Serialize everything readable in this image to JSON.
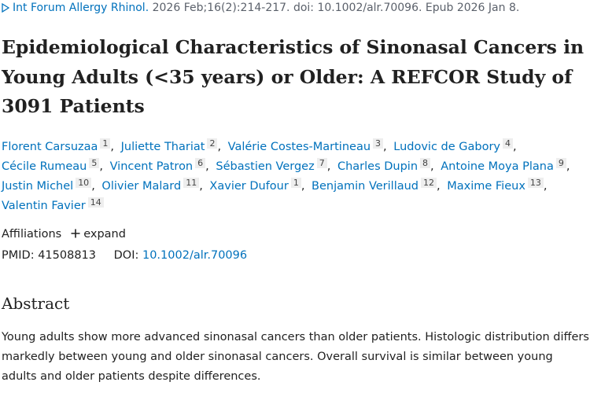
{
  "citation": {
    "journal": "Int Forum Allergy Rhinol.",
    "details": "2026 Feb;16(2):214-217. doi: 10.1002/alr.70096. Epub 2026 Jan 8."
  },
  "title": "Epidemiological Characteristics of Sinonasal Cancers in Young Adults (<35 years) or Older: A REFCOR Study of 3091 Patients",
  "authors": [
    {
      "name": "Florent Carsuzaa",
      "affiliation": 1
    },
    {
      "name": "Juliette Thariat",
      "affiliation": 2
    },
    {
      "name": "Valérie Costes-Martineau",
      "affiliation": 3
    },
    {
      "name": "Ludovic de Gabory",
      "affiliation": 4
    },
    {
      "name": "Cécile Rumeau",
      "affiliation": 5
    },
    {
      "name": "Vincent Patron",
      "affiliation": 6
    },
    {
      "name": "Sébastien Vergez",
      "affiliation": 7
    },
    {
      "name": "Charles Dupin",
      "affiliation": 8
    },
    {
      "name": "Antoine Moya Plana",
      "affiliation": 9
    },
    {
      "name": "Justin Michel",
      "affiliation": 10
    },
    {
      "name": "Olivier Malard",
      "affiliation": 11
    },
    {
      "name": "Xavier Dufour",
      "affiliation": 1
    },
    {
      "name": "Benjamin Verillaud",
      "affiliation": 12
    },
    {
      "name": "Maxime Fieux",
      "affiliation": 13
    },
    {
      "name": "Valentin Favier",
      "affiliation": 14
    }
  ],
  "affiliations": {
    "label": "Affiliations",
    "toggle": "expand"
  },
  "identifiers": {
    "pmid_label": "PMID:",
    "pmid": "41508813",
    "doi_label": "DOI:",
    "doi": "10.1002/alr.70096"
  },
  "abstract": {
    "heading": "Abstract",
    "text": "Young adults show more advanced sinonasal cancers than older patients. Histologic distribution differs markedly between young and older sinonasal cancers. Overall survival is similar between young adults and older patients despite differences."
  }
}
